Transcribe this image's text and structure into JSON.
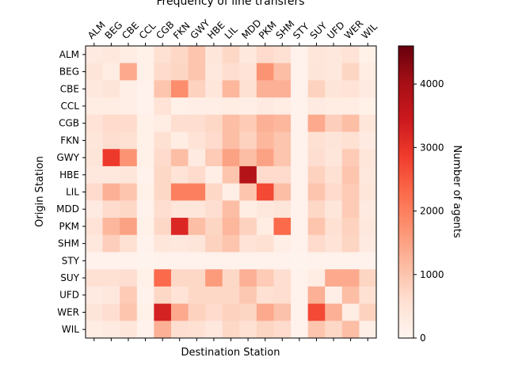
{
  "chart_data": {
    "type": "heatmap",
    "title": "Frequency of line transfers",
    "xlabel": "Destination Station",
    "ylabel": "Origin Station",
    "x_labels": [
      "ALM",
      "BEG",
      "CBE",
      "CCL",
      "CGB",
      "FKN",
      "GWY",
      "HBE",
      "LIL",
      "MDD",
      "PKM",
      "SHM",
      "STY",
      "SUY",
      "UFD",
      "WER",
      "WIL"
    ],
    "y_labels": [
      "ALM",
      "BEG",
      "CBE",
      "CCL",
      "CGB",
      "FKN",
      "GWY",
      "HBE",
      "LIL",
      "MDD",
      "PKM",
      "SHM",
      "STY",
      "SUY",
      "UFD",
      "WER",
      "WIL"
    ],
    "colorbar": {
      "label": "Number of agents",
      "vmin": 0,
      "vmax": 4600,
      "ticks": [
        0,
        1000,
        2000,
        3000,
        4000
      ],
      "tick_labels": [
        "0",
        "1000",
        "2000",
        "3000",
        "4000"
      ],
      "colormap": "Reds"
    },
    "values": [
      [
        300,
        350,
        250,
        150,
        550,
        700,
        1000,
        400,
        700,
        350,
        650,
        550,
        100,
        400,
        350,
        500,
        150
      ],
      [
        450,
        250,
        1400,
        150,
        650,
        750,
        1000,
        350,
        600,
        500,
        1700,
        1100,
        100,
        450,
        350,
        750,
        250
      ],
      [
        350,
        450,
        200,
        100,
        1000,
        1800,
        800,
        400,
        1200,
        550,
        1300,
        1300,
        100,
        800,
        450,
        500,
        300
      ],
      [
        250,
        250,
        200,
        100,
        500,
        150,
        200,
        200,
        250,
        200,
        300,
        250,
        100,
        300,
        250,
        250,
        150
      ],
      [
        500,
        650,
        650,
        150,
        250,
        600,
        600,
        700,
        1100,
        900,
        1300,
        1200,
        100,
        1400,
        850,
        1100,
        400
      ],
      [
        400,
        600,
        550,
        150,
        550,
        250,
        500,
        650,
        1100,
        800,
        1200,
        1000,
        100,
        550,
        450,
        550,
        300
      ],
      [
        450,
        2900,
        1700,
        150,
        650,
        1100,
        300,
        900,
        1500,
        1100,
        1500,
        1000,
        100,
        600,
        400,
        900,
        400
      ],
      [
        350,
        350,
        400,
        100,
        700,
        500,
        650,
        200,
        1000,
        3800,
        650,
        650,
        100,
        800,
        550,
        1000,
        350
      ],
      [
        650,
        1300,
        1000,
        150,
        700,
        2000,
        2000,
        700,
        200,
        1000,
        2700,
        1100,
        100,
        1000,
        650,
        900,
        400
      ],
      [
        300,
        650,
        700,
        100,
        600,
        400,
        400,
        600,
        1100,
        250,
        350,
        450,
        100,
        700,
        400,
        900,
        300
      ],
      [
        500,
        1200,
        1500,
        150,
        700,
        3200,
        1100,
        750,
        1200,
        800,
        250,
        2300,
        100,
        1000,
        550,
        800,
        350
      ],
      [
        350,
        850,
        550,
        100,
        400,
        350,
        450,
        800,
        1000,
        500,
        550,
        200,
        100,
        650,
        500,
        750,
        300
      ],
      [
        100,
        100,
        100,
        50,
        100,
        100,
        100,
        100,
        100,
        100,
        100,
        100,
        50,
        100,
        100,
        100,
        100
      ],
      [
        550,
        550,
        600,
        150,
        2300,
        700,
        700,
        1600,
        700,
        1300,
        900,
        600,
        100,
        250,
        1400,
        1400,
        750
      ],
      [
        300,
        350,
        900,
        100,
        700,
        500,
        700,
        700,
        700,
        950,
        550,
        600,
        100,
        1300,
        200,
        1100,
        550
      ],
      [
        450,
        600,
        1000,
        150,
        3300,
        1400,
        800,
        650,
        800,
        750,
        1400,
        1050,
        100,
        2700,
        1300,
        250,
        800
      ],
      [
        250,
        300,
        400,
        100,
        1300,
        600,
        550,
        350,
        700,
        550,
        750,
        650,
        100,
        1000,
        700,
        1100,
        200
      ]
    ]
  }
}
